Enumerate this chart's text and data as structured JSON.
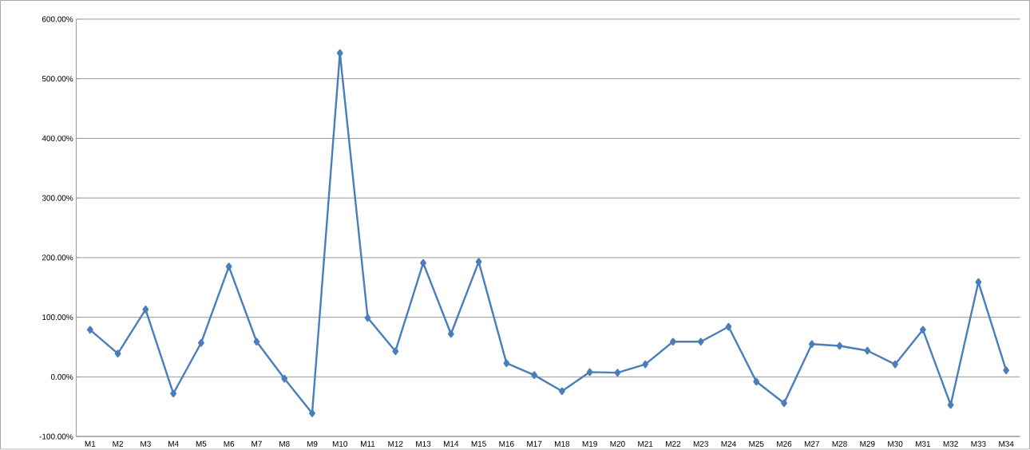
{
  "chart_data": {
    "type": "line",
    "categories": [
      "M1",
      "M2",
      "M3",
      "M4",
      "M5",
      "M6",
      "M7",
      "M8",
      "M9",
      "M10",
      "M11",
      "M12",
      "M13",
      "M14",
      "M15",
      "M16",
      "M17",
      "M18",
      "M19",
      "M20",
      "M21",
      "M22",
      "M23",
      "M24",
      "M25",
      "M26",
      "M27",
      "M28",
      "M29",
      "M30",
      "M31",
      "M32",
      "M33",
      "M34"
    ],
    "values": [
      79,
      39,
      113,
      -28,
      57,
      185,
      59,
      -3,
      -61,
      543,
      99,
      43,
      191,
      72,
      193,
      23,
      3,
      -24,
      8,
      7,
      21,
      59,
      59,
      84,
      -8,
      -44,
      55,
      52,
      44,
      21,
      79,
      -47,
      159,
      11
    ],
    "color": "#4a7ebb",
    "ylim": [
      -100,
      600
    ],
    "yticks": [
      {
        "value": -100,
        "label": "-100.00%"
      },
      {
        "value": 0,
        "label": "0.00%"
      },
      {
        "value": 100,
        "label": "100.00%"
      },
      {
        "value": 200,
        "label": "200.00%"
      },
      {
        "value": 300,
        "label": "300.00%"
      },
      {
        "value": 400,
        "label": "400.00%"
      },
      {
        "value": 500,
        "label": "500.00%"
      },
      {
        "value": 600,
        "label": "600.00%"
      }
    ],
    "grid": "y",
    "marker": "diamond",
    "line_style": "solid"
  }
}
